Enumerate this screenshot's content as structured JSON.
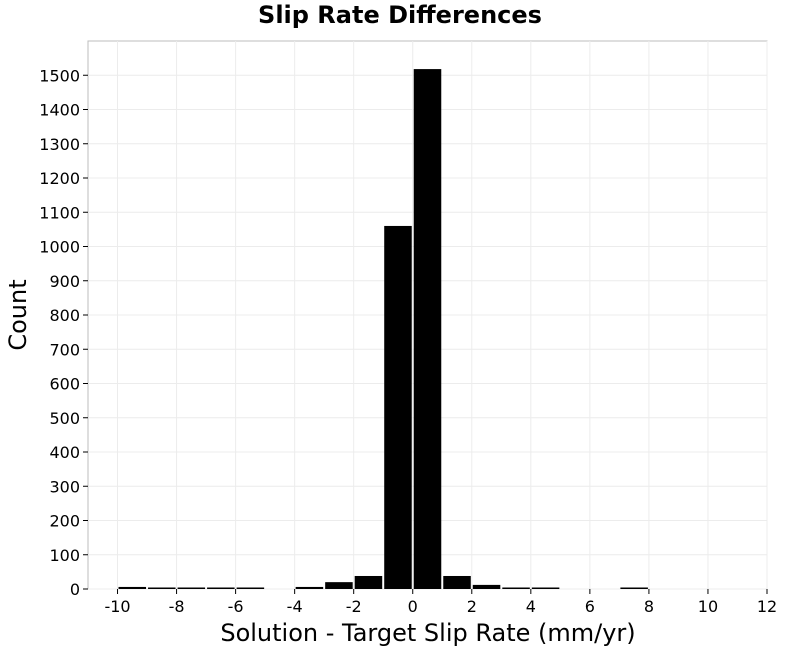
{
  "chart_data": {
    "type": "bar",
    "title": "Slip Rate Differences",
    "xlabel": "Solution - Target Slip Rate (mm/yr)",
    "ylabel": "Count",
    "xlim": [
      -11,
      12
    ],
    "ylim": [
      0,
      1600
    ],
    "x_ticks": [
      -10,
      -8,
      -6,
      -4,
      -2,
      0,
      2,
      4,
      6,
      8,
      10,
      12
    ],
    "x_tick_labels": [
      "-10",
      "-8",
      "-6",
      "-4",
      "-2",
      "0",
      "2",
      "4",
      "6",
      "8",
      "10",
      "12"
    ],
    "y_ticks": [
      0,
      100,
      200,
      300,
      400,
      500,
      600,
      700,
      800,
      900,
      1000,
      1100,
      1200,
      1300,
      1400,
      1500
    ],
    "y_tick_labels": [
      "0",
      "100",
      "200",
      "300",
      "400",
      "500",
      "600",
      "700",
      "800",
      "900",
      "1000",
      "1100",
      "1200",
      "1300",
      "1400",
      "1500"
    ],
    "grid": true,
    "bin_width": 1,
    "bar_color": "#000000",
    "bins": [
      {
        "x": -9.5,
        "value": 6
      },
      {
        "x": -8.5,
        "value": 2
      },
      {
        "x": -7.5,
        "value": 2
      },
      {
        "x": -6.5,
        "value": 2
      },
      {
        "x": -5.5,
        "value": 2
      },
      {
        "x": -4.5,
        "value": 0
      },
      {
        "x": -3.5,
        "value": 6
      },
      {
        "x": -2.5,
        "value": 20
      },
      {
        "x": -1.5,
        "value": 38
      },
      {
        "x": -0.5,
        "value": 1060
      },
      {
        "x": 0.5,
        "value": 1518
      },
      {
        "x": 1.5,
        "value": 38
      },
      {
        "x": 2.5,
        "value": 12
      },
      {
        "x": 3.5,
        "value": 4
      },
      {
        "x": 4.5,
        "value": 4
      },
      {
        "x": 5.5,
        "value": 0
      },
      {
        "x": 6.5,
        "value": 0
      },
      {
        "x": 7.5,
        "value": 2
      },
      {
        "x": 8.5,
        "value": 0
      },
      {
        "x": 9.5,
        "value": 0
      },
      {
        "x": 10.5,
        "value": 0
      }
    ]
  }
}
